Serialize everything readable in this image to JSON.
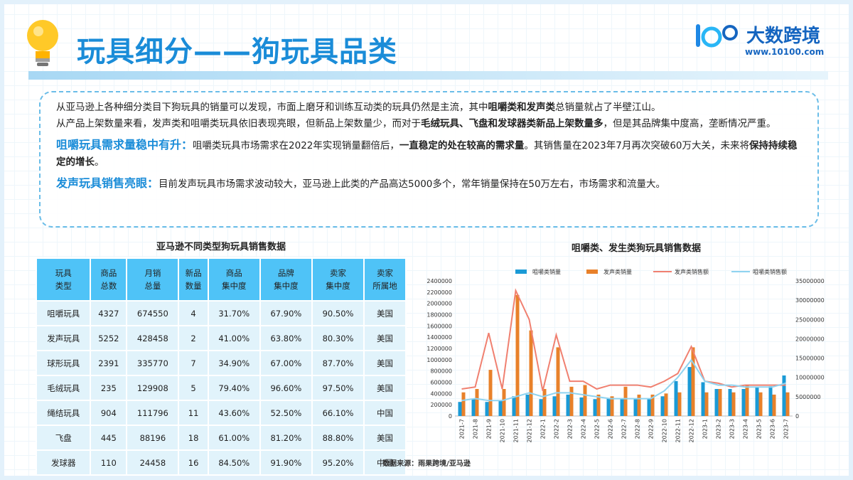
{
  "header": {
    "title": "玩具细分——狗玩具品类",
    "logo_name": "大数跨境",
    "logo_url": "www.10100.com"
  },
  "intro": [
    [
      {
        "text": "从亚马逊上各种细分类目下狗玩具的销量可以发现，市面上磨牙和训练互动类的玩具仍然是主流，其中"
      },
      {
        "text": "咀嚼类和发声类",
        "style": "bold"
      },
      {
        "text": "总销量就占了半壁江山。"
      }
    ],
    [
      {
        "text": "从产品上架数量来看，发声类和咀嚼类玩具依旧表现亮眼，但新品上架数量少，而对于"
      },
      {
        "text": "毛绒玩具、飞盘和发球器类新品上架数量多",
        "style": "bold"
      },
      {
        "text": "，但是其品牌集中度高，垄断情况严重。"
      }
    ],
    [
      {
        "text": "咀嚼玩具需求量稳中有升：",
        "style": "heading"
      },
      {
        "text": "咀嚼类玩具市场需求在2022年实现销量翻倍后，"
      },
      {
        "text": "一直稳定的处在较高的需求量",
        "style": "bold"
      },
      {
        "text": "。其销售量在2023年7月再次突破60万大关，未来将"
      },
      {
        "text": "保持持续稳定的增长",
        "style": "bold"
      },
      {
        "text": "。"
      }
    ],
    [
      {
        "text": "发声玩具销售亮眼：",
        "style": "heading"
      },
      {
        "text": "目前发声玩具市场需求波动较大，亚马逊上此类的产品高达5000多个，常年销量保持在50万左右，市场需求和流量大。"
      }
    ]
  ],
  "table": {
    "title": "亚马逊不同类型狗玩具销售数据",
    "headers": [
      [
        "玩具",
        "类型"
      ],
      [
        "商品",
        "总数"
      ],
      [
        "月销",
        "总量"
      ],
      [
        "新品",
        "数量"
      ],
      [
        "商品",
        "集中度"
      ],
      [
        "品牌",
        "集中度"
      ],
      [
        "卖家",
        "集中度"
      ],
      [
        "卖家",
        "所属地"
      ]
    ],
    "rows": [
      [
        "咀嚼玩具",
        "4327",
        "674550",
        "4",
        "31.70%",
        "67.90%",
        "90.50%",
        "美国"
      ],
      [
        "发声玩具",
        "5252",
        "428458",
        "2",
        "41.00%",
        "63.80%",
        "80.30%",
        "美国"
      ],
      [
        "球形玩具",
        "2391",
        "335770",
        "7",
        "34.90%",
        "67.00%",
        "87.70%",
        "美国"
      ],
      [
        "毛绒玩具",
        "235",
        "129908",
        "5",
        "79.40%",
        "96.60%",
        "97.50%",
        "美国"
      ],
      [
        "绳结玩具",
        "904",
        "111796",
        "11",
        "43.60%",
        "52.50%",
        "66.10%",
        "中国"
      ],
      [
        "飞盘",
        "445",
        "88196",
        "18",
        "61.00%",
        "81.20%",
        "88.80%",
        "美国"
      ],
      [
        "发球器",
        "110",
        "24458",
        "16",
        "84.50%",
        "91.90%",
        "95.20%",
        "中国"
      ]
    ]
  },
  "chart_data": {
    "type": "bar",
    "title": "咀嚼类、发生类狗玩具销售数据",
    "categories": [
      "2021-7",
      "2021-8",
      "2021-9",
      "2021-10",
      "2021-11",
      "2021-12",
      "2022-1",
      "2022-2",
      "2022-3",
      "2022-4",
      "2022-5",
      "2022-6",
      "2022-7",
      "2022-8",
      "2022-9",
      "2022-10",
      "2022-11",
      "2022-12",
      "2023-1",
      "2023-2",
      "2023-3",
      "2023-4",
      "2023-5",
      "2023-6",
      "2023-7"
    ],
    "series": [
      {
        "name": "咀嚼类销量",
        "type": "bar",
        "color": "#1a9ad6",
        "values": [
          250000,
          300000,
          250000,
          280000,
          350000,
          380000,
          300000,
          350000,
          380000,
          330000,
          300000,
          320000,
          300000,
          310000,
          300000,
          350000,
          620000,
          870000,
          600000,
          480000,
          480000,
          480000,
          520000,
          530000,
          720000
        ]
      },
      {
        "name": "发声类销量",
        "type": "bar",
        "color": "#e8812a",
        "values": [
          420000,
          480000,
          820000,
          480000,
          2150000,
          1520000,
          480000,
          1220000,
          520000,
          550000,
          380000,
          350000,
          520000,
          380000,
          380000,
          400000,
          420000,
          1220000,
          420000,
          480000,
          420000,
          550000,
          420000,
          380000,
          420000
        ]
      },
      {
        "name": "发声类销售额",
        "type": "line",
        "axis": "y2",
        "color": "#f08070",
        "values": [
          7000000,
          7500000,
          21500000,
          7000000,
          32500000,
          25000000,
          6500000,
          21000000,
          9000000,
          9000000,
          7000000,
          8000000,
          8000000,
          8000000,
          7500000,
          9000000,
          11000000,
          18000000,
          9000000,
          8500000,
          7500000,
          8000000,
          8000000,
          8000000,
          8000000
        ]
      },
      {
        "name": "咀嚼类销售额",
        "type": "line",
        "axis": "y2",
        "color": "#8fd3f0",
        "values": [
          4000000,
          4500000,
          4000000,
          4000000,
          5000000,
          6000000,
          5000000,
          6000000,
          6000000,
          5500000,
          5000000,
          4500000,
          4500000,
          4500000,
          4500000,
          6500000,
          10000000,
          14500000,
          9000000,
          8000000,
          8000000,
          7500000,
          7500000,
          7500000,
          8500000
        ]
      }
    ],
    "ylim": [
      0,
      2400000
    ],
    "yticks": [
      0,
      200000,
      400000,
      600000,
      800000,
      1000000,
      1200000,
      1400000,
      1600000,
      1800000,
      2000000,
      2200000,
      2400000
    ],
    "y2lim": [
      0,
      35000000
    ],
    "y2ticks": [
      0,
      5000000,
      10000000,
      15000000,
      20000000,
      25000000,
      30000000,
      35000000
    ],
    "legend": "top"
  },
  "source": "数据来源：雨果跨境/亚马逊"
}
